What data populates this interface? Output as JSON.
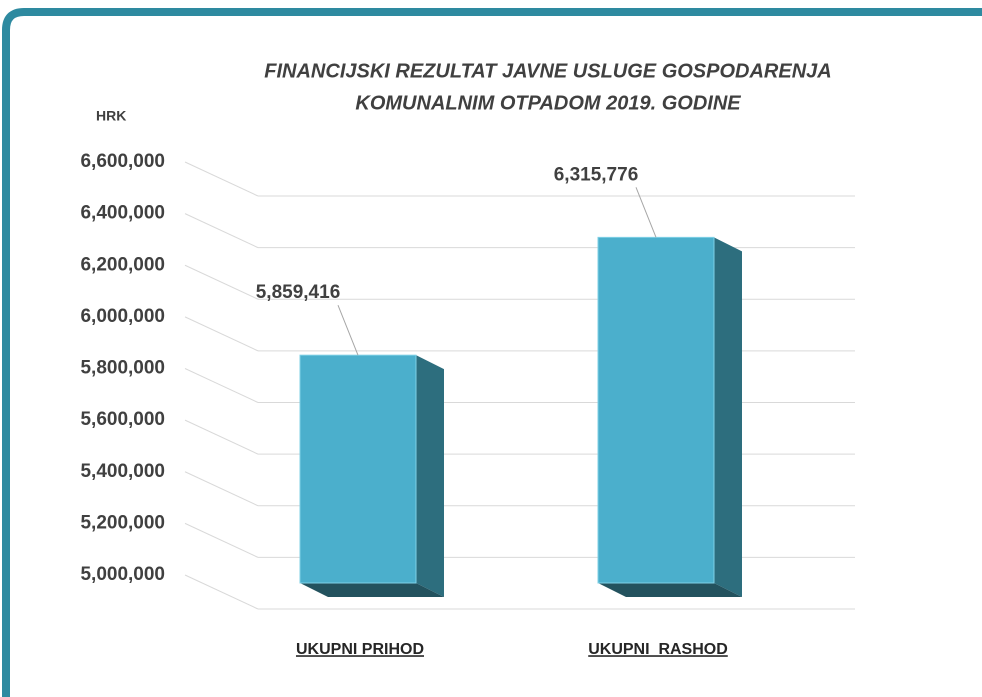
{
  "chart_data": {
    "type": "bar3d",
    "title": [
      "FINANCIJSKI REZULTAT JAVNE USLUGE GOSPODARENJA",
      "KOMUNALNIM OTPADOM 2019. GODINE"
    ],
    "ylabel": "HRK",
    "categories": [
      "UKUPNI PRIHOD",
      "UKUPNI  RASHOD"
    ],
    "values": [
      5859416,
      6315776
    ],
    "value_labels": [
      "5,859,416",
      "6,315,776"
    ],
    "color": "#4bafcc",
    "ylim": [
      5000000,
      6600000
    ],
    "yticks": [
      {
        "value": 5000000,
        "label": "5,000,000"
      },
      {
        "value": 5200000,
        "label": "5,200,000"
      },
      {
        "value": 5400000,
        "label": "5,400,000"
      },
      {
        "value": 5600000,
        "label": "5,600,000"
      },
      {
        "value": 5800000,
        "label": "5,800,000"
      },
      {
        "value": 6000000,
        "label": "6,000,000"
      },
      {
        "value": 6200000,
        "label": "6,200,000"
      },
      {
        "value": 6400000,
        "label": "6,400,000"
      },
      {
        "value": 6600000,
        "label": "6,600,000"
      }
    ],
    "grid": true
  }
}
